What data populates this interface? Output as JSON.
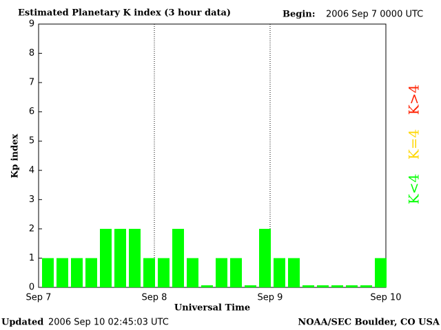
{
  "chart_data": {
    "type": "bar",
    "title": "Estimated Planetary K index (3 hour data)",
    "begin_label": "Begin:",
    "begin_value": "2006 Sep 7 0000 UTC",
    "x_label": "Universal Time",
    "y_label": "Kp index",
    "updated_label": "Updated",
    "updated_value": "2006 Sep 10 02:45:03 UTC",
    "source": "NOAA/SEC Boulder, CO USA",
    "x": [
      0,
      3,
      6,
      9,
      12,
      15,
      18,
      21,
      24,
      27,
      30,
      33,
      36,
      39,
      42,
      45,
      48,
      51,
      54,
      57,
      60,
      63,
      66,
      69
    ],
    "bar_width": 3,
    "values": [
      1,
      1,
      1,
      1,
      2,
      2,
      2,
      1,
      1,
      2,
      1,
      0,
      1,
      1,
      0,
      2,
      1,
      1,
      0,
      0,
      0,
      0,
      0,
      1
    ],
    "color": "#00ff00",
    "xlim": [
      0,
      72
    ],
    "xticks": [
      {
        "value": 0,
        "label": "Sep 7"
      },
      {
        "value": 24,
        "label": "Sep 8"
      },
      {
        "value": 48,
        "label": "Sep 9"
      },
      {
        "value": 72,
        "label": "Sep 10"
      }
    ],
    "ylim": [
      0,
      9
    ],
    "yticks": [
      0,
      1,
      2,
      3,
      4,
      5,
      6,
      7,
      8,
      9
    ],
    "legend": [
      {
        "name": "K<4",
        "color": "#00ff00"
      },
      {
        "name": "K=4",
        "color": "#ffd700"
      },
      {
        "name": "K>4",
        "color": "#ff2000"
      }
    ]
  }
}
